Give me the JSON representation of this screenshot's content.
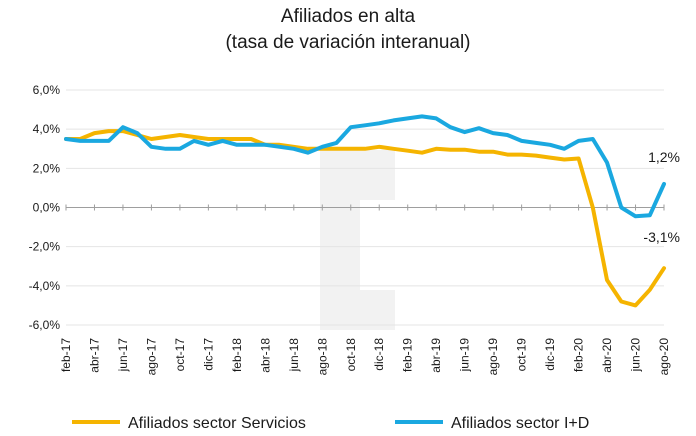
{
  "chart_data": {
    "type": "line",
    "title": "Afiliados en alta",
    "subtitle": "(tasa de variación interanual)",
    "ylim": [
      -6,
      6
    ],
    "yticks": [
      6,
      4,
      2,
      0,
      -2,
      -4,
      -6
    ],
    "ytick_labels": [
      "6,0%",
      "4,0%",
      "2,0%",
      "0,0%",
      "-2,0%",
      "-4,0%",
      "-6,0%"
    ],
    "x": [
      "feb-17",
      "mar-17",
      "abr-17",
      "may-17",
      "jun-17",
      "jul-17",
      "ago-17",
      "sep-17",
      "oct-17",
      "nov-17",
      "dic-17",
      "ene-18",
      "feb-18",
      "mar-18",
      "abr-18",
      "may-18",
      "jun-18",
      "jul-18",
      "ago-18",
      "sep-18",
      "oct-18",
      "nov-18",
      "dic-18",
      "ene-19",
      "feb-19",
      "mar-19",
      "abr-19",
      "may-19",
      "jun-19",
      "jul-19",
      "ago-19",
      "sep-19",
      "oct-19",
      "nov-19",
      "dic-19",
      "ene-20",
      "feb-20",
      "mar-20",
      "abr-20",
      "may-20",
      "jun-20",
      "jul-20",
      "ago-20"
    ],
    "xtick_labels": [
      "feb-17",
      "abr-17",
      "jun-17",
      "ago-17",
      "oct-17",
      "dic-17",
      "feb-18",
      "abr-18",
      "jun-18",
      "ago-18",
      "oct-18",
      "dic-18",
      "feb-19",
      "abr-19",
      "jun-19",
      "ago-19",
      "oct-19",
      "dic-19",
      "feb-20",
      "abr-20",
      "jun-20",
      "ago-20"
    ],
    "series": [
      {
        "name": "Afiliados sector Servicios",
        "color": "#f5b400",
        "values": [
          3.5,
          3.5,
          3.8,
          3.9,
          3.9,
          3.7,
          3.5,
          3.6,
          3.7,
          3.6,
          3.5,
          3.5,
          3.5,
          3.5,
          3.2,
          3.2,
          3.1,
          3.0,
          3.0,
          3.0,
          3.0,
          3.0,
          3.1,
          3.0,
          2.9,
          2.8,
          3.0,
          2.95,
          2.95,
          2.85,
          2.85,
          2.7,
          2.7,
          2.65,
          2.55,
          2.45,
          2.5,
          0.0,
          -3.7,
          -4.8,
          -5.0,
          -4.2,
          -3.1
        ]
      },
      {
        "name": "Afiliados sector I+D",
        "color": "#1aa8e0",
        "values": [
          3.5,
          3.4,
          3.4,
          3.4,
          4.1,
          3.8,
          3.1,
          3.0,
          3.0,
          3.4,
          3.2,
          3.4,
          3.2,
          3.2,
          3.2,
          3.1,
          3.0,
          2.8,
          3.1,
          3.3,
          4.1,
          4.2,
          4.3,
          4.45,
          4.55,
          4.65,
          4.55,
          4.1,
          3.85,
          4.05,
          3.8,
          3.7,
          3.4,
          3.3,
          3.2,
          3.0,
          3.4,
          3.5,
          2.3,
          0.0,
          -0.45,
          -0.4,
          1.2
        ]
      }
    ],
    "annotations": [
      {
        "text": "1,2%",
        "series": 1
      },
      {
        "text": "-3,1%",
        "series": 0
      }
    ]
  }
}
